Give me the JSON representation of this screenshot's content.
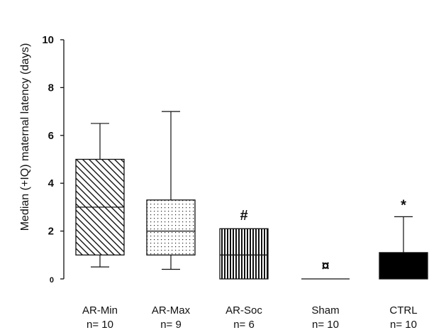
{
  "chart_data": {
    "type": "box",
    "ylabel": "Median (+IQ) maternal latency (days)",
    "ylim": [
      0,
      10
    ],
    "yticks": [
      {
        "value": 0,
        "label": "0"
      },
      {
        "value": 2,
        "label": "2"
      },
      {
        "value": 4,
        "label": "4"
      },
      {
        "value": 6,
        "label": "6"
      },
      {
        "value": 8,
        "label": "8"
      },
      {
        "value": 10,
        "label": "10"
      }
    ],
    "grid": false,
    "categories": [
      "AR-Min",
      "AR-Max",
      "AR-Soc",
      "Sham",
      "CTRL"
    ],
    "n_labels": [
      "n= 10",
      "n= 9",
      "n= 6",
      "n= 10",
      "n= 10"
    ],
    "boxes": [
      {
        "name": "AR-Min",
        "whisker_low": 0.5,
        "q1": 1,
        "median": 3,
        "q3": 5,
        "whisker_high": 6.5,
        "fill": "diagonal-hatch",
        "annotation": ""
      },
      {
        "name": "AR-Max",
        "whisker_low": 0.4,
        "q1": 1,
        "median": 2,
        "q3": 3.3,
        "whisker_high": 7,
        "fill": "dots",
        "annotation": ""
      },
      {
        "name": "AR-Soc",
        "q1": 0,
        "median": 1,
        "q3": 2.1,
        "fill": "vertical-lines",
        "annotation": "#"
      },
      {
        "name": "Sham",
        "q1": 0,
        "median": 0,
        "q3": 0,
        "fill": "none",
        "annotation": "¤"
      },
      {
        "name": "CTRL",
        "q1": 0,
        "median": 1,
        "q3": 1.1,
        "whisker_high": 2.6,
        "fill": "solid",
        "annotation": "*"
      }
    ]
  }
}
